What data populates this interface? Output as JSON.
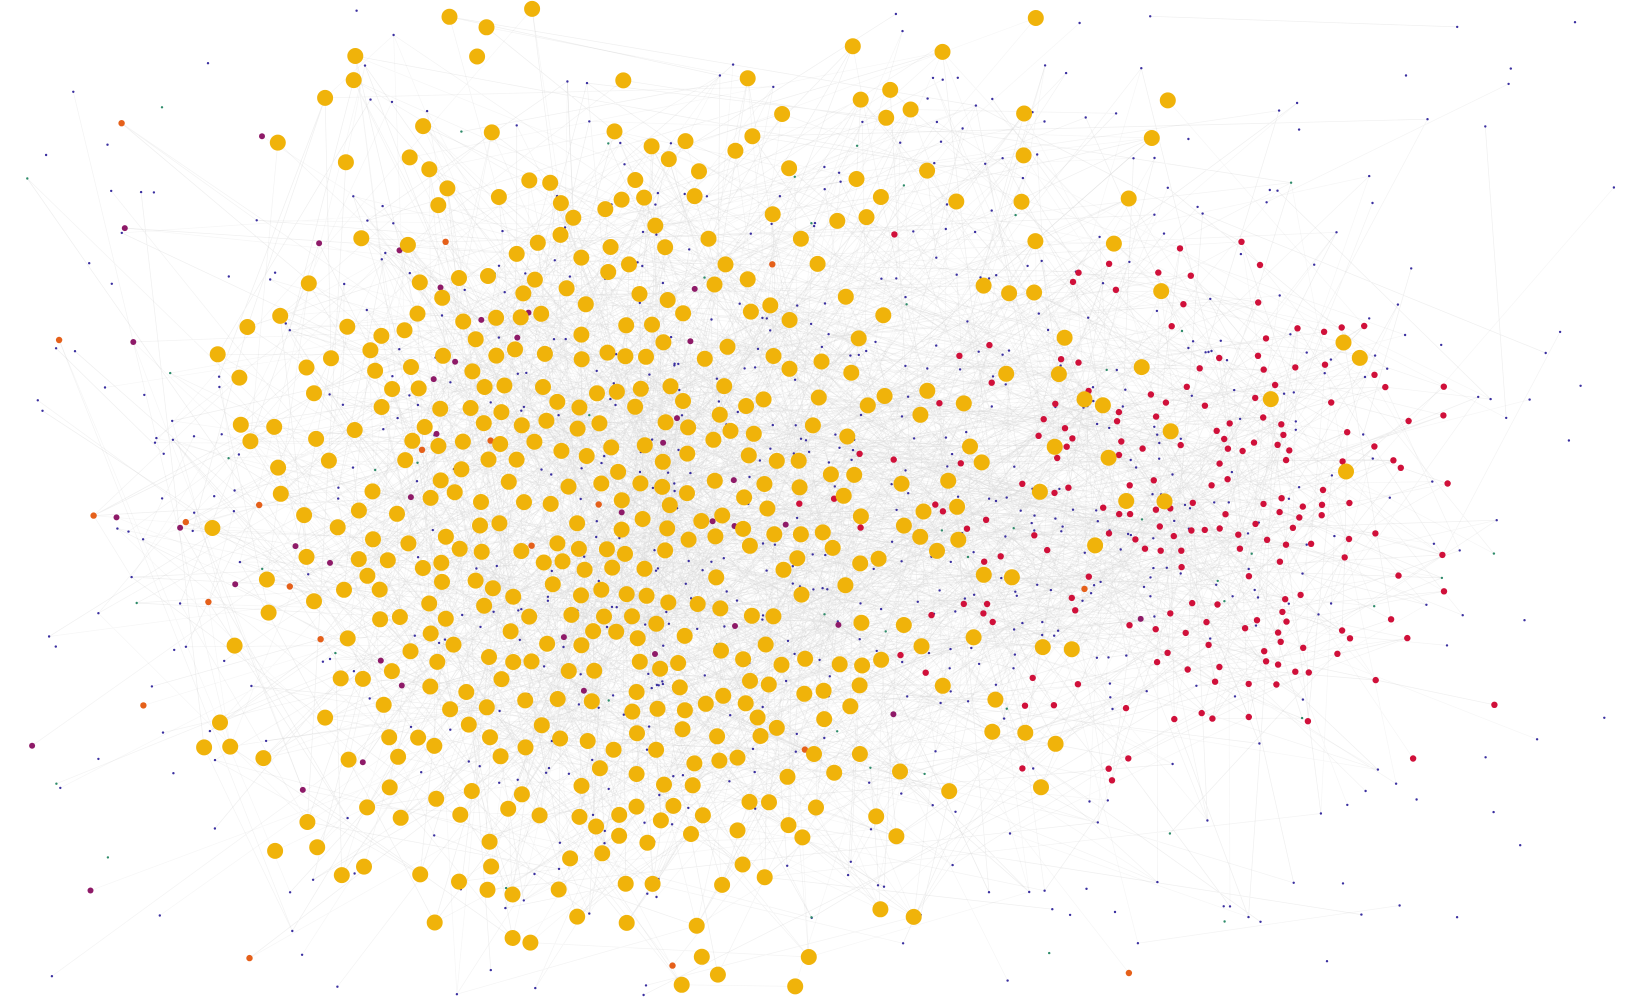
{
  "graph": {
    "type": "force-directed network",
    "background": "#ffffff",
    "edge_color": "#7a7a7a",
    "node_groups": [
      {
        "id": "core-cluster",
        "color": "#F0B30A",
        "size": "large"
      },
      {
        "id": "secondary-cluster",
        "color": "#D0103A",
        "size": "medium"
      },
      {
        "id": "bridge-nodes",
        "color": "#8E1A68",
        "size": "small"
      },
      {
        "id": "peripheral-nodes",
        "color": "#E5601A",
        "size": "small"
      },
      {
        "id": "background-nodes",
        "color": "#3A2FA0",
        "size": "tiny"
      },
      {
        "id": "minor-nodes",
        "color": "#2E8B6A",
        "size": "tiny"
      }
    ]
  }
}
